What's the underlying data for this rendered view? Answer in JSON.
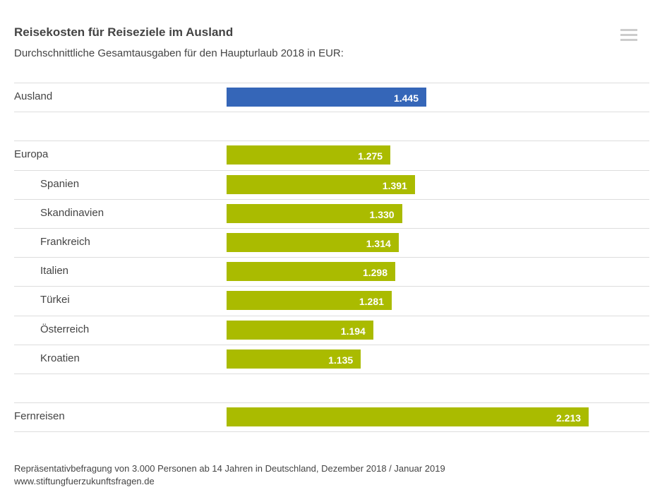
{
  "chart_data": {
    "type": "bar",
    "orientation": "horizontal",
    "title": "Reisekosten für Reiseziele im Ausland",
    "subtitle": "Durchschnittliche Gesamtausgaben für den Haupturlaub 2018 in EUR:",
    "xlim": [
      500,
      2500
    ],
    "grid": false,
    "colors": {
      "Ausland": "#3566b8",
      "default": "#aabb00"
    },
    "rows": [
      {
        "label": "Ausland",
        "value": 1445,
        "display": "1.445",
        "indent": false,
        "color": "#3566b8"
      },
      null,
      {
        "label": "Europa",
        "value": 1275,
        "display": "1.275",
        "indent": false
      },
      {
        "label": "Spanien",
        "value": 1391,
        "display": "1.391",
        "indent": true
      },
      {
        "label": "Skandinavien",
        "value": 1330,
        "display": "1.330",
        "indent": true
      },
      {
        "label": "Frankreich",
        "value": 1314,
        "display": "1.314",
        "indent": true
      },
      {
        "label": "Italien",
        "value": 1298,
        "display": "1.298",
        "indent": true
      },
      {
        "label": "Türkei",
        "value": 1281,
        "display": "1.281",
        "indent": true
      },
      {
        "label": "Österreich",
        "value": 1194,
        "display": "1.194",
        "indent": true
      },
      {
        "label": "Kroatien",
        "value": 1135,
        "display": "1.135",
        "indent": true
      },
      null,
      {
        "label": "Fernreisen",
        "value": 2213,
        "display": "2.213",
        "indent": false
      }
    ]
  },
  "footer": {
    "source": "Repräsentativbefragung von 3.000 Personen ab 14 Jahren in Deutschland, Dezember 2018 / Januar 2019",
    "url": "www.stiftungfuerzukunftsfragen.de"
  },
  "menu_icon": "hamburger-menu-icon"
}
